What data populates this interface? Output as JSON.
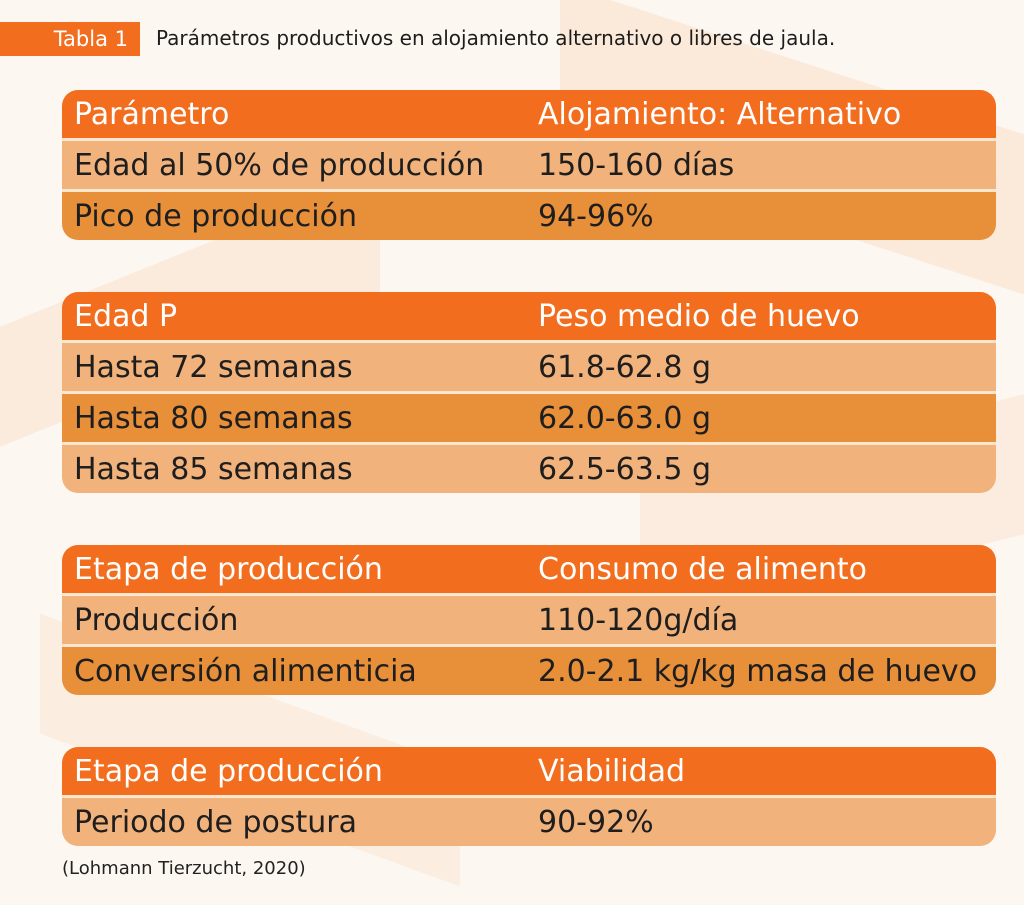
{
  "caption": {
    "label": "Tabla 1",
    "title": "Parámetros productivos en alojamiento alternativo o libres de jaula."
  },
  "tables": [
    {
      "header": [
        "Parámetro",
        "Alojamiento: Alternativo"
      ],
      "rows": [
        [
          "Edad al 50% de producción",
          "150-160 días"
        ],
        [
          "Pico de producción",
          "94-96%"
        ]
      ]
    },
    {
      "header": [
        "Edad P",
        "Peso medio de huevo"
      ],
      "rows": [
        [
          "Hasta 72 semanas",
          "61.8-62.8 g"
        ],
        [
          "Hasta 80 semanas",
          "62.0-63.0 g"
        ],
        [
          "Hasta 85 semanas",
          "62.5-63.5 g"
        ]
      ]
    },
    {
      "header": [
        "Etapa de producción",
        "Consumo de alimento"
      ],
      "rows": [
        [
          "Producción",
          "110-120g/día"
        ],
        [
          "Conversión alimenticia",
          "2.0-2.1 kg/kg masa de huevo"
        ]
      ]
    },
    {
      "header": [
        "Etapa de producción",
        "Viabilidad"
      ],
      "rows": [
        [
          "Periodo de postura",
          "90-92%"
        ]
      ]
    }
  ],
  "source": "(Lohmann Tierzucht, 2020)",
  "colors": {
    "header": "#f26d1d",
    "row_light": "#f2b27b",
    "row_dark": "#e88f3a"
  }
}
